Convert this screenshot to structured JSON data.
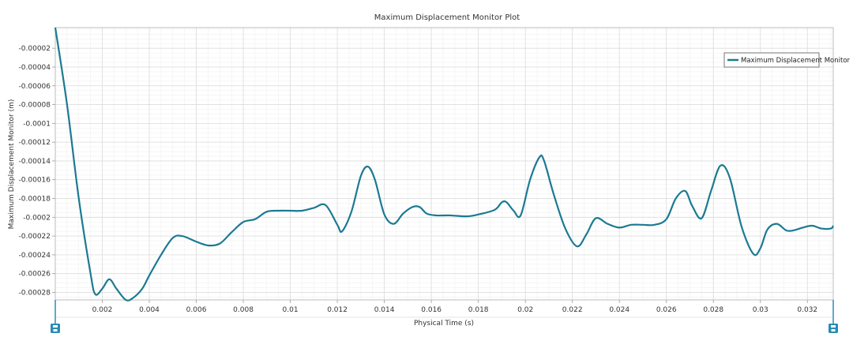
{
  "colors": {
    "series": "#1b7a93",
    "grid_major": "#dcdcdc",
    "grid_minor": "#f0f0f0",
    "axis": "#9a9a9a",
    "handle": "#2a8cb4"
  },
  "icons": {
    "range_handle": "slider-handle-icon"
  },
  "chart_data": {
    "type": "line",
    "title": "Maximum Displacement Monitor Plot",
    "xlabel": "Physical Time (s)",
    "ylabel": "Maximum Displacement Monitor (m)",
    "xlim": [
      0,
      0.0331
    ],
    "ylim": [
      -0.000288,
      2e-06
    ],
    "x_ticks": [
      0.002,
      0.004,
      0.006,
      0.008,
      0.01,
      0.012,
      0.014,
      0.016,
      0.018,
      0.02,
      0.022,
      0.024,
      0.026,
      0.028,
      0.03,
      0.032
    ],
    "x_tick_labels": [
      "0.002",
      "0.004",
      "0.006",
      "0.008",
      "0.01",
      "0.012",
      "0.014",
      "0.016",
      "0.018",
      "0.02",
      "0.022",
      "0.024",
      "0.026",
      "0.028",
      "0.03",
      "0.032"
    ],
    "y_ticks": [
      -2e-05,
      -4e-05,
      -6e-05,
      -8e-05,
      -0.0001,
      -0.00012,
      -0.00014,
      -0.00016,
      -0.00018,
      -0.0002,
      -0.00022,
      -0.00024,
      -0.00026,
      -0.00028
    ],
    "y_tick_labels": [
      "-0.00002",
      "-0.00004",
      "-0.00006",
      "-0.00008",
      "-0.0001",
      "-0.00012",
      "-0.00014",
      "-0.00016",
      "-0.00018",
      "-0.0002",
      "-0.00022",
      "-0.00024",
      "-0.00026",
      "-0.00028"
    ],
    "grid": true,
    "legend_position": "top-right",
    "series": [
      {
        "name": "Maximum Displacement Monitor",
        "x": [
          0,
          0.0005,
          0.001,
          0.0015,
          0.0017,
          0.002,
          0.0023,
          0.0026,
          0.003,
          0.0033,
          0.0037,
          0.004,
          0.0045,
          0.005,
          0.0054,
          0.006,
          0.0065,
          0.007,
          0.0075,
          0.008,
          0.0085,
          0.009,
          0.0095,
          0.01,
          0.0105,
          0.011,
          0.0115,
          0.012,
          0.0122,
          0.0126,
          0.013,
          0.0133,
          0.0136,
          0.014,
          0.0144,
          0.0148,
          0.0152,
          0.0155,
          0.0158,
          0.0162,
          0.0168,
          0.0175,
          0.018,
          0.0187,
          0.019,
          0.0192,
          0.0195,
          0.0198,
          0.0202,
          0.0206,
          0.0208,
          0.0212,
          0.0217,
          0.0222,
          0.0226,
          0.023,
          0.0235,
          0.024,
          0.0245,
          0.025,
          0.0255,
          0.026,
          0.0264,
          0.0268,
          0.0271,
          0.0275,
          0.0279,
          0.0283,
          0.0287,
          0.0292,
          0.0297,
          0.03,
          0.0303,
          0.0307,
          0.0311,
          0.0314,
          0.0318,
          0.0322,
          0.0326,
          0.033,
          0.0331
        ],
        "values": [
          2e-06,
          -8e-05,
          -0.00018,
          -0.00026,
          -0.000282,
          -0.000276,
          -0.000266,
          -0.000276,
          -0.000288,
          -0.000286,
          -0.000276,
          -0.000262,
          -0.00024,
          -0.000222,
          -0.00022,
          -0.000226,
          -0.00023,
          -0.000228,
          -0.000216,
          -0.000205,
          -0.000202,
          -0.000194,
          -0.000193,
          -0.000193,
          -0.000193,
          -0.00019,
          -0.000187,
          -0.000208,
          -0.000215,
          -0.000194,
          -0.000156,
          -0.000146,
          -0.00016,
          -0.000197,
          -0.000207,
          -0.000196,
          -0.000189,
          -0.000189,
          -0.000196,
          -0.000198,
          -0.000198,
          -0.000199,
          -0.000197,
          -0.000192,
          -0.000184,
          -0.000184,
          -0.000193,
          -0.000198,
          -0.00016,
          -0.000136,
          -0.00014,
          -0.000175,
          -0.000212,
          -0.000231,
          -0.000218,
          -0.000201,
          -0.000207,
          -0.000211,
          -0.000208,
          -0.000208,
          -0.000208,
          -0.000202,
          -0.00018,
          -0.000172,
          -0.000188,
          -0.000201,
          -0.000172,
          -0.000145,
          -0.000158,
          -0.00021,
          -0.000239,
          -0.000233,
          -0.000213,
          -0.000207,
          -0.000214,
          -0.000214,
          -0.000211,
          -0.000209,
          -0.000212,
          -0.000212,
          -0.000209
        ]
      }
    ]
  }
}
